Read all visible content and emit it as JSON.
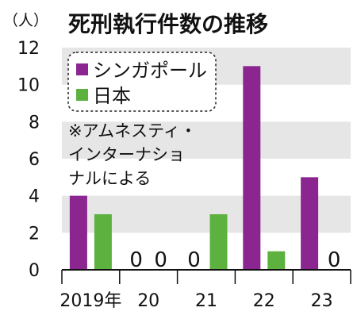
{
  "chart_data": {
    "type": "bar",
    "title": "死刑執行件数の推移",
    "unit_label": "（人）",
    "categories": [
      "2019年",
      "20",
      "21",
      "22",
      "23"
    ],
    "series": [
      {
        "name": "シンガポール",
        "color": "#8b2590",
        "values": [
          4,
          0,
          0,
          11,
          5
        ]
      },
      {
        "name": "日本",
        "color": "#5cb13f",
        "values": [
          3,
          0,
          3,
          1,
          0
        ]
      }
    ],
    "ylim": [
      0,
      12
    ],
    "yticks": [
      0,
      2,
      4,
      6,
      8,
      10,
      12
    ],
    "zero_label": "0",
    "legend_placement": "top-left",
    "annotation_lines": [
      "※アムネスティ・",
      "インターナショ",
      "ナルによる"
    ],
    "band_color": "#e6e6e6"
  }
}
